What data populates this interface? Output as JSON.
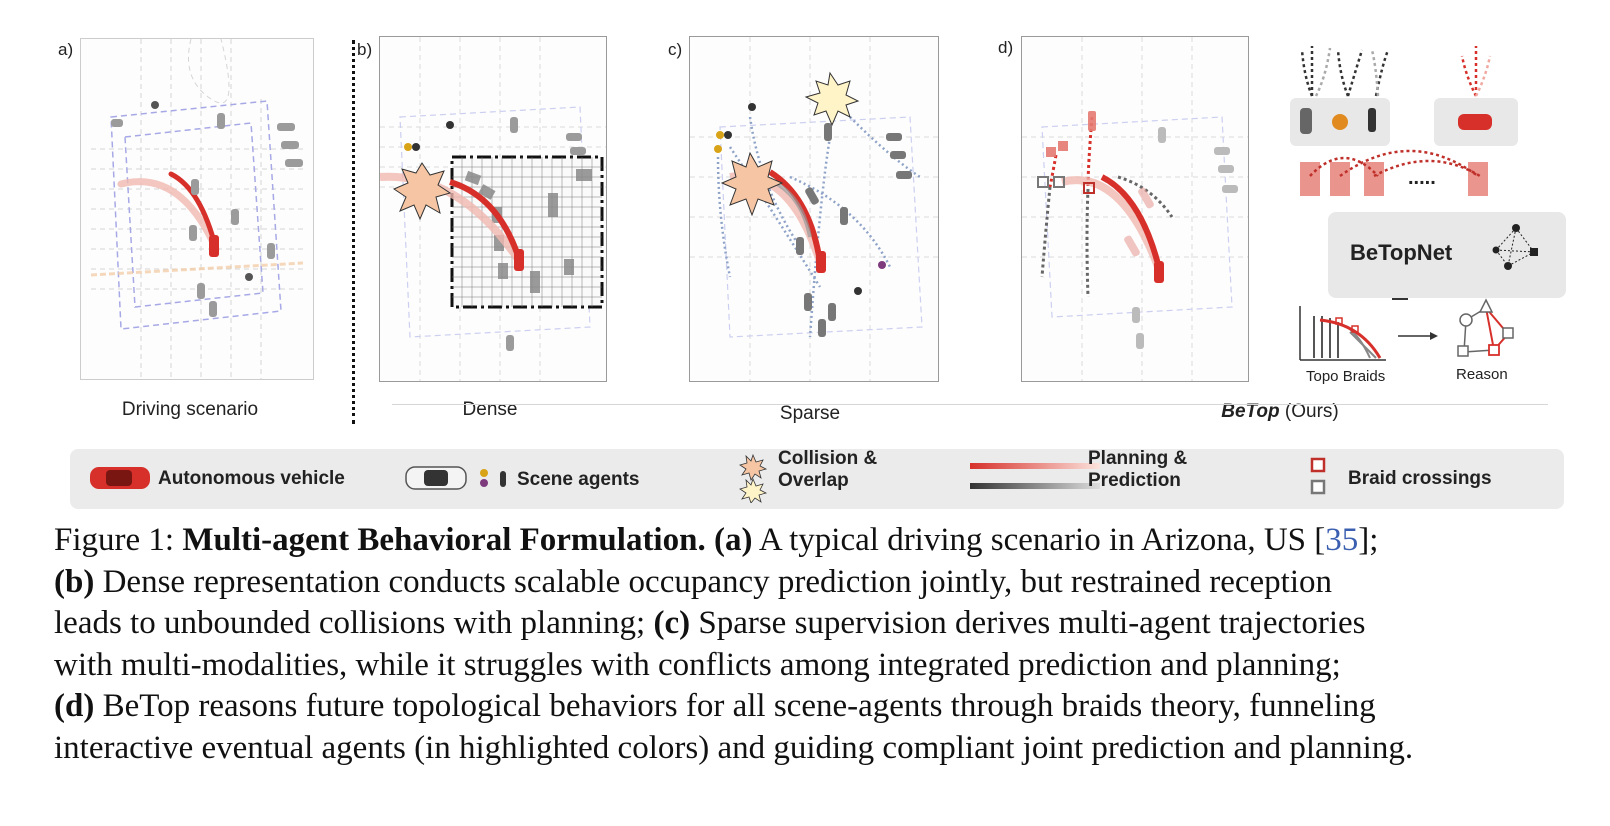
{
  "panels": {
    "a": {
      "label": "a)",
      "subtitle": "Driving scenario"
    },
    "b": {
      "label": "b)",
      "subtitle": "Dense"
    },
    "c": {
      "label": "c)",
      "subtitle": "Sparse"
    },
    "d": {
      "label": "d)",
      "subtitle_bold": "BeTop",
      "subtitle_rest": " (Ours)"
    }
  },
  "schematic": {
    "network_name": "BeTopNet",
    "braids_label": "Topo Braids",
    "reason_label": "Reason",
    "ellipsis": "....."
  },
  "legend": {
    "autonomous_vehicle": "Autonomous vehicle",
    "scene_agents": "Scene agents",
    "collision_line1": "Collision &",
    "collision_line2": "Overlap",
    "planning_line1": "Planning &",
    "planning_line2": "Prediction",
    "braid_crossings": "Braid crossings"
  },
  "caption": {
    "fig": "Figure 1: ",
    "title": "Multi-agent Behavioral Formulation.",
    "a_tag": "(a)",
    "a_text": " A typical driving scenario in Arizona, US [",
    "a_cite": "35",
    "a_end": "];",
    "b_tag": "(b)",
    "b_text": " Dense representation conducts scalable occupancy prediction jointly, but restrained reception",
    "line3": "leads to unbounded collisions with planning; ",
    "c_tag": "(c)",
    "c_text": " Sparse supervision derives multi-agent trajectories",
    "line4": "with multi-modalities, while it struggles with conflicts among integrated prediction and planning;",
    "d_tag": "(d)",
    "d_text": " BeTop reasons future topological behaviors for all scene-agents through braids theory, funneling",
    "line6": "interactive eventual agents (in highlighted colors) and guiding compliant joint prediction and planning."
  },
  "colors": {
    "ego": "#d7302a",
    "agent": "#8a8a8a",
    "lane": "#c9cbe8",
    "highlight": "#e0554d",
    "burst": "#f6c6a4"
  }
}
